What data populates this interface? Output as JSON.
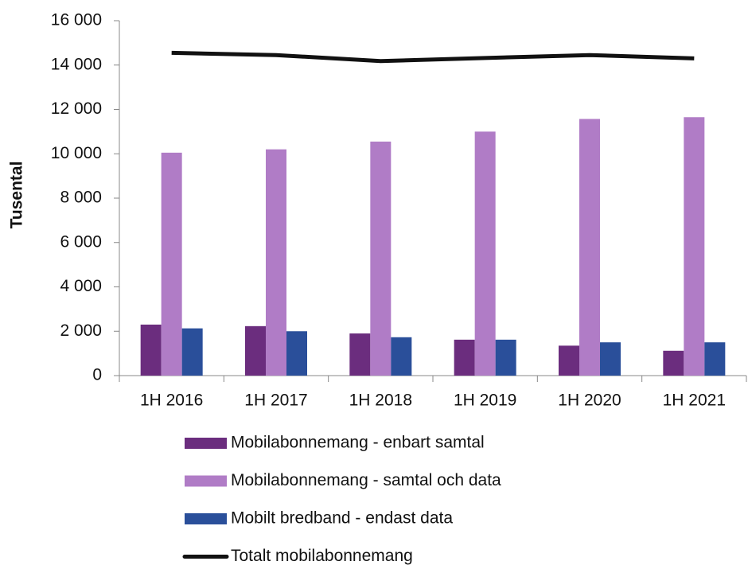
{
  "chart_data": {
    "type": "bar",
    "y_label": "Tusental",
    "categories": [
      "1H 2016",
      "1H 2017",
      "1H 2018",
      "1H 2019",
      "1H 2020",
      "1H 2021"
    ],
    "series": [
      {
        "name": "Mobilabonnemang - enbart samtal",
        "color": "#6b2d7e",
        "values": [
          2300,
          2230,
          1900,
          1620,
          1350,
          1120
        ]
      },
      {
        "name": "Mobilabonnemang - samtal och data",
        "color": "#b07cc6",
        "values": [
          10050,
          10200,
          10550,
          11000,
          11570,
          11650
        ]
      },
      {
        "name": "Mobilt bredband - endast data",
        "color": "#2a4f9a",
        "values": [
          2130,
          2000,
          1730,
          1620,
          1500,
          1500
        ]
      },
      {
        "name": "Totalt mobilabonnemang",
        "color": "#111111",
        "type": "line",
        "values": [
          14550,
          14450,
          14180,
          14320,
          14450,
          14300
        ]
      }
    ],
    "ylim": [
      0,
      16000
    ],
    "yticks": [
      0,
      {
        "value": 2000,
        "label": "2 000"
      },
      {
        "value": 4000,
        "label": "4 000"
      },
      {
        "value": 6000,
        "label": "6 000"
      },
      {
        "value": 8000,
        "label": "8 000"
      },
      {
        "value": 10000,
        "label": "10 000"
      },
      {
        "value": 12000,
        "label": "12 000"
      },
      {
        "value": 14000,
        "label": "14 000"
      },
      {
        "value": 16000,
        "label": "16 000"
      }
    ],
    "grid": false
  }
}
